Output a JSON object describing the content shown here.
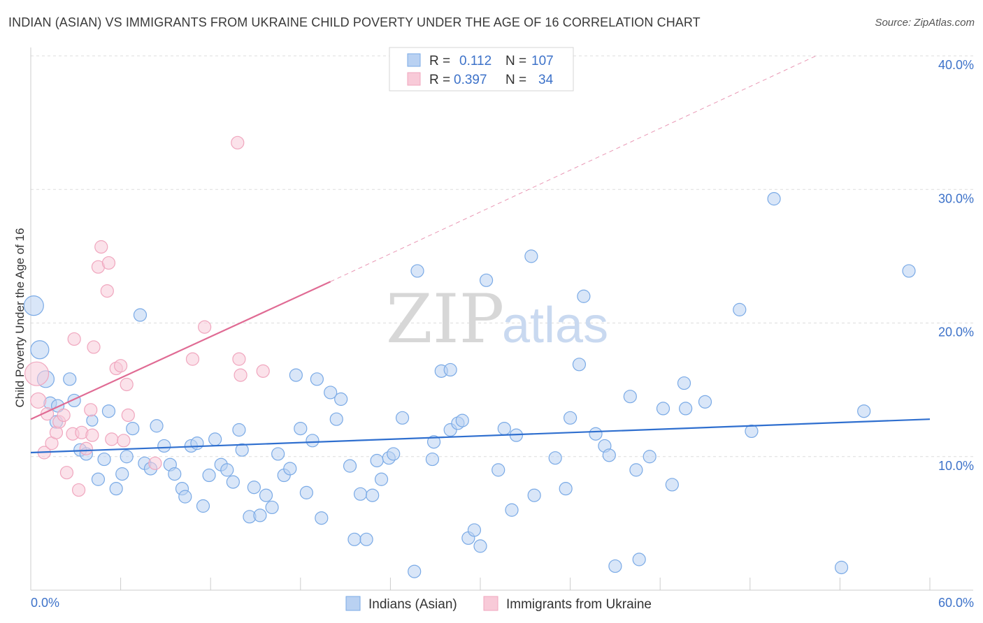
{
  "title": "INDIAN (ASIAN) VS IMMIGRANTS FROM UKRAINE CHILD POVERTY UNDER THE AGE OF 16 CORRELATION CHART",
  "source": "Source: ZipAtlas.com",
  "watermark": {
    "zip": "ZIP",
    "atlas": "atlas"
  },
  "chart_data": {
    "type": "scatter",
    "ylabel": "Child Poverty Under the Age of 16",
    "xlim": [
      0,
      60
    ],
    "ylim": [
      0,
      40
    ],
    "x_tick_labels": [
      "0.0%",
      "60.0%"
    ],
    "y_ticks": [
      10,
      20,
      30,
      40
    ],
    "y_tick_labels": [
      "10.0%",
      "20.0%",
      "30.0%",
      "40.0%"
    ],
    "grid": true,
    "legend_position": "top-center",
    "legend": [
      {
        "r_label": "R =",
        "r_value": "0.112",
        "n_label": "N =",
        "n_value": "107"
      },
      {
        "r_label": "R =",
        "r_value": "0.397",
        "n_label": "N =",
        "n_value": "34"
      }
    ],
    "series": [
      {
        "name": "Indians (Asian)",
        "color": "#7aaae6",
        "fill": "#b9d1f2",
        "trend": {
          "x0": 0,
          "y0": 10.3,
          "x1": 60,
          "y1": 12.8,
          "color": "#2f6fcf"
        },
        "points": [
          [
            0.2,
            21.3,
            14
          ],
          [
            0.6,
            18.0,
            13
          ],
          [
            1.0,
            15.8,
            12
          ],
          [
            1.3,
            14.0,
            9
          ],
          [
            1.7,
            12.6,
            9
          ],
          [
            1.8,
            13.8,
            9
          ],
          [
            2.6,
            15.8,
            9
          ],
          [
            2.9,
            14.2,
            9
          ],
          [
            3.3,
            10.5,
            9
          ],
          [
            3.7,
            10.2,
            9
          ],
          [
            4.1,
            12.7,
            8
          ],
          [
            4.5,
            8.3,
            9
          ],
          [
            4.9,
            9.8,
            9
          ],
          [
            5.2,
            13.4,
            9
          ],
          [
            5.7,
            7.6,
            9
          ],
          [
            6.1,
            8.7,
            9
          ],
          [
            6.4,
            10.0,
            9
          ],
          [
            6.8,
            12.1,
            9
          ],
          [
            7.3,
            20.6,
            9
          ],
          [
            7.6,
            9.5,
            9
          ],
          [
            8.0,
            9.1,
            9
          ],
          [
            8.4,
            12.3,
            9
          ],
          [
            8.9,
            10.8,
            9
          ],
          [
            9.3,
            9.4,
            9
          ],
          [
            9.6,
            8.7,
            9
          ],
          [
            10.1,
            7.6,
            9
          ],
          [
            10.3,
            7.0,
            9
          ],
          [
            10.7,
            10.8,
            9
          ],
          [
            11.1,
            11.0,
            9
          ],
          [
            11.5,
            6.3,
            9
          ],
          [
            11.9,
            8.6,
            9
          ],
          [
            12.3,
            11.3,
            9
          ],
          [
            12.7,
            9.4,
            9
          ],
          [
            13.1,
            9.0,
            9
          ],
          [
            13.5,
            8.1,
            9
          ],
          [
            13.9,
            12.0,
            9
          ],
          [
            14.1,
            10.5,
            9
          ],
          [
            14.6,
            5.5,
            9
          ],
          [
            14.9,
            7.7,
            9
          ],
          [
            15.3,
            5.6,
            9
          ],
          [
            15.7,
            7.1,
            9
          ],
          [
            16.1,
            6.2,
            9
          ],
          [
            16.5,
            10.2,
            9
          ],
          [
            16.9,
            8.6,
            9
          ],
          [
            17.3,
            9.1,
            9
          ],
          [
            17.7,
            16.1,
            9
          ],
          [
            18.0,
            12.1,
            9
          ],
          [
            18.4,
            7.3,
            9
          ],
          [
            18.8,
            11.2,
            9
          ],
          [
            19.1,
            15.8,
            9
          ],
          [
            19.4,
            5.4,
            9
          ],
          [
            20.0,
            14.8,
            9
          ],
          [
            20.4,
            12.8,
            9
          ],
          [
            20.7,
            14.3,
            9
          ],
          [
            21.3,
            9.3,
            9
          ],
          [
            21.6,
            3.8,
            9
          ],
          [
            22.0,
            7.2,
            9
          ],
          [
            22.4,
            3.8,
            9
          ],
          [
            22.8,
            7.1,
            9
          ],
          [
            23.1,
            9.7,
            9
          ],
          [
            23.4,
            8.3,
            9
          ],
          [
            23.9,
            9.9,
            9
          ],
          [
            24.2,
            10.2,
            9
          ],
          [
            24.8,
            12.9,
            9
          ],
          [
            25.6,
            1.4,
            9
          ],
          [
            25.8,
            23.9,
            9
          ],
          [
            26.9,
            11.1,
            9
          ],
          [
            26.8,
            9.8,
            9
          ],
          [
            27.4,
            16.4,
            9
          ],
          [
            28.0,
            16.5,
            9
          ],
          [
            28.0,
            12.0,
            9
          ],
          [
            28.5,
            12.5,
            9
          ],
          [
            28.8,
            12.7,
            9
          ],
          [
            29.2,
            3.9,
            9
          ],
          [
            29.6,
            4.5,
            9
          ],
          [
            30.0,
            3.3,
            9
          ],
          [
            30.4,
            23.2,
            9
          ],
          [
            31.2,
            9.0,
            9
          ],
          [
            31.6,
            12.1,
            9
          ],
          [
            32.1,
            6.0,
            9
          ],
          [
            32.4,
            11.6,
            9
          ],
          [
            33.4,
            25.0,
            9
          ],
          [
            33.6,
            7.1,
            9
          ],
          [
            35.0,
            9.9,
            9
          ],
          [
            35.7,
            7.6,
            9
          ],
          [
            36.0,
            12.9,
            9
          ],
          [
            36.6,
            16.9,
            9
          ],
          [
            36.9,
            22.0,
            9
          ],
          [
            37.7,
            11.7,
            9
          ],
          [
            38.3,
            10.8,
            9
          ],
          [
            38.6,
            10.1,
            9
          ],
          [
            39.0,
            1.8,
            9
          ],
          [
            40.0,
            14.5,
            9
          ],
          [
            40.4,
            9.0,
            9
          ],
          [
            40.6,
            2.3,
            9
          ],
          [
            41.3,
            10.0,
            9
          ],
          [
            42.2,
            13.6,
            9
          ],
          [
            42.8,
            7.9,
            9
          ],
          [
            43.6,
            15.5,
            9
          ],
          [
            43.7,
            13.6,
            9
          ],
          [
            45.0,
            14.1,
            9
          ],
          [
            47.3,
            21.0,
            9
          ],
          [
            48.1,
            11.9,
            9
          ],
          [
            49.6,
            29.3,
            9
          ],
          [
            54.1,
            1.7,
            9
          ],
          [
            55.6,
            13.4,
            9
          ],
          [
            58.6,
            23.9,
            9
          ]
        ]
      },
      {
        "name": "Immigrants from Ukraine",
        "color": "#f0a6be",
        "fill": "#f8cad8",
        "trend": {
          "x0": 0,
          "y0": 12.8,
          "x1": 20,
          "y1": 23.1,
          "color": "#e06b94"
        },
        "trend_dashed_to": {
          "x": 52.4,
          "y": 40.0
        },
        "points": [
          [
            0.4,
            16.2,
            17
          ],
          [
            0.5,
            14.2,
            11
          ],
          [
            0.9,
            10.3,
            9
          ],
          [
            1.1,
            13.2,
            9
          ],
          [
            1.4,
            11.0,
            9
          ],
          [
            1.7,
            11.8,
            9
          ],
          [
            1.9,
            12.6,
            9
          ],
          [
            2.2,
            13.1,
            9
          ],
          [
            2.4,
            8.8,
            9
          ],
          [
            2.8,
            11.7,
            9
          ],
          [
            2.9,
            18.8,
            9
          ],
          [
            3.2,
            7.5,
            9
          ],
          [
            3.4,
            11.8,
            9
          ],
          [
            3.7,
            10.6,
            9
          ],
          [
            4.0,
            13.5,
            9
          ],
          [
            4.1,
            11.6,
            9
          ],
          [
            4.2,
            18.2,
            9
          ],
          [
            4.5,
            24.2,
            9
          ],
          [
            4.7,
            25.7,
            9
          ],
          [
            5.1,
            22.4,
            9
          ],
          [
            5.2,
            24.5,
            9
          ],
          [
            5.4,
            11.3,
            9
          ],
          [
            5.7,
            16.6,
            9
          ],
          [
            6.0,
            16.8,
            9
          ],
          [
            6.2,
            11.2,
            9
          ],
          [
            6.4,
            15.4,
            9
          ],
          [
            6.5,
            13.1,
            9
          ],
          [
            8.3,
            9.5,
            9
          ],
          [
            10.8,
            17.3,
            9
          ],
          [
            11.6,
            19.7,
            9
          ],
          [
            13.8,
            33.5,
            9
          ],
          [
            13.9,
            17.3,
            9
          ],
          [
            14.0,
            16.1,
            9
          ],
          [
            15.5,
            16.4,
            9
          ]
        ]
      }
    ]
  }
}
